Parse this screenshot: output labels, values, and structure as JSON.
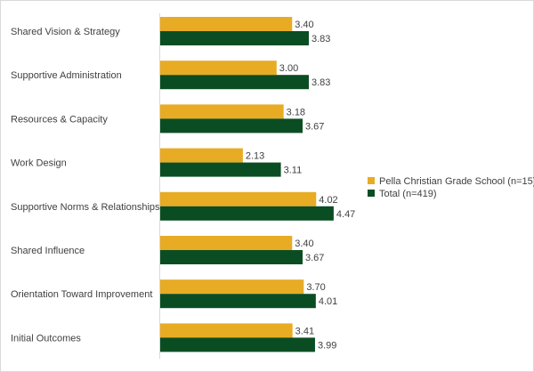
{
  "chart_data": {
    "type": "bar",
    "orientation": "horizontal",
    "categories": [
      "Shared Vision & Strategy",
      "Supportive Administration",
      "Resources & Capacity",
      "Work Design",
      "Supportive Norms & Relationships",
      "Shared Influence",
      "Orientation Toward Improvement",
      "Initial Outcomes"
    ],
    "series": [
      {
        "name": "Pella Christian Grade School (n=15)",
        "color": "#E8AB24",
        "values": [
          3.4,
          3.0,
          3.18,
          2.13,
          4.02,
          3.4,
          3.7,
          3.41
        ],
        "labels": [
          "3.40",
          "3.00",
          "3.18",
          "2.13",
          "4.02",
          "3.40",
          "3.70",
          "3.41"
        ]
      },
      {
        "name": "Total (n=419)",
        "color": "#0B4D23",
        "values": [
          3.83,
          3.83,
          3.67,
          3.11,
          4.47,
          3.67,
          4.01,
          3.99
        ],
        "labels": [
          "3.83",
          "3.83",
          "3.67",
          "3.11",
          "4.47",
          "3.67",
          "4.01",
          "3.99"
        ]
      }
    ],
    "xlim": [
      0,
      5
    ],
    "grid": false,
    "legend_position": "right",
    "title": "",
    "xlabel": "",
    "ylabel": ""
  }
}
